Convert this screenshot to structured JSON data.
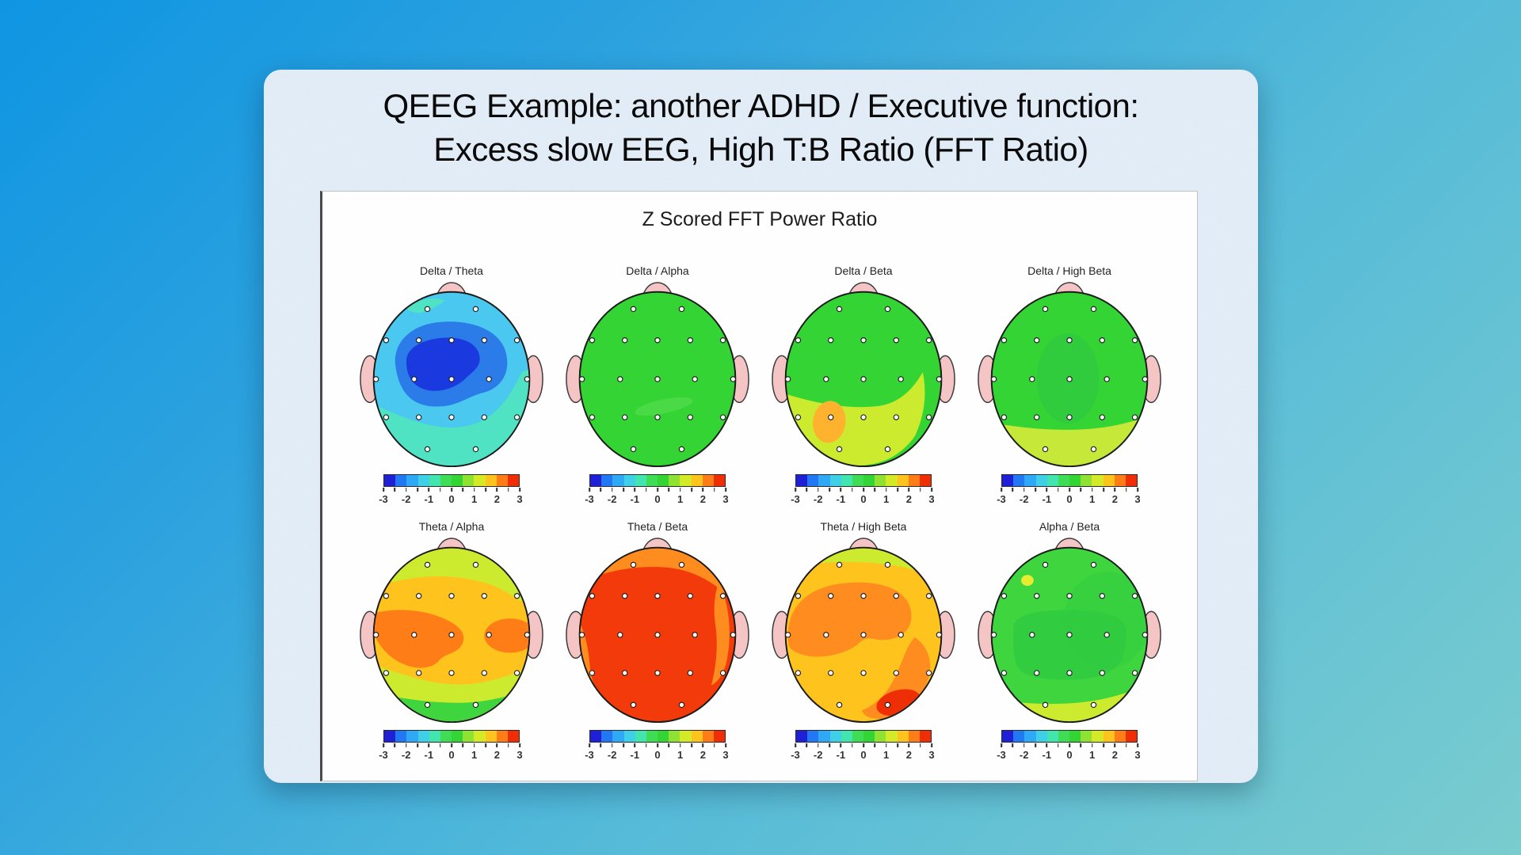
{
  "slide": {
    "title_line1": "QEEG Example: another ADHD / Executive function:",
    "title_line2": "Excess slow EEG, High T:B Ratio (FFT Ratio)"
  },
  "panel": {
    "title": "Z Scored FFT Power Ratio",
    "scale_ticks": [
      "-3",
      "-2",
      "-1",
      "0",
      "1",
      "2",
      "3"
    ],
    "colorbar_colors": [
      "#1f1fd6",
      "#2277f2",
      "#2fa9f5",
      "#3fd0e8",
      "#42e5ad",
      "#3edd55",
      "#35d435",
      "#8fe232",
      "#d4ea26",
      "#ffc31e",
      "#ff7d17",
      "#f02e05"
    ],
    "maps": [
      {
        "label": "Delta / Theta"
      },
      {
        "label": "Delta / Alpha"
      },
      {
        "label": "Delta / Beta"
      },
      {
        "label": "Delta / High Beta"
      },
      {
        "label": "Theta / Alpha"
      },
      {
        "label": "Theta / Beta"
      },
      {
        "label": "Theta / High Beta"
      },
      {
        "label": "Alpha / Beta"
      }
    ]
  },
  "chart_data": {
    "type": "heatmap",
    "title": "Z Scored FFT Power Ratio",
    "subtype": "EEG topographic z-score maps, 19-channel 10-20 montage, 2x4 grid",
    "colorbar": {
      "min": -3,
      "max": 3,
      "ticks": [
        -3,
        -2,
        -1,
        0,
        1,
        2,
        3
      ],
      "palette": [
        "#1f1fd6",
        "#2277f2",
        "#2fa9f5",
        "#3fd0e8",
        "#42e5ad",
        "#3edd55",
        "#35d435",
        "#8fe232",
        "#d4ea26",
        "#ffc31e",
        "#ff7d17",
        "#f02e05"
      ]
    },
    "maps": [
      {
        "label": "Delta / Theta",
        "approx_region_z": {
          "overall": -1.5,
          "frontal_central": -2.7,
          "frontal_ring": -2.2,
          "posterior": -1.0,
          "top_left_patch": -1.0
        }
      },
      {
        "label": "Delta / Alpha",
        "approx_region_z": {
          "overall": 0.0
        }
      },
      {
        "label": "Delta / Beta",
        "approx_region_z": {
          "frontal": 0.2,
          "posterior": 1.2,
          "left_parietal": 1.8
        }
      },
      {
        "label": "Delta / High Beta",
        "approx_region_z": {
          "overall": 0.2,
          "occipital": 1.2
        }
      },
      {
        "label": "Theta / Alpha",
        "approx_region_z": {
          "overall": 1.7,
          "left_central": 2.3,
          "right_temporal": 2.3,
          "frontal_pole": 1.2,
          "parietal": 1.2,
          "occipital": 0.3
        }
      },
      {
        "label": "Theta / Beta",
        "approx_region_z": {
          "overall": 2.8,
          "top_and_side_edges": 2.2
        }
      },
      {
        "label": "Theta / High Beta",
        "approx_region_z": {
          "overall": 1.7,
          "frontal_central": 2.2,
          "right_parietal": 2.2,
          "right_occipital": 2.9,
          "frontal_pole": 1.0
        }
      },
      {
        "label": "Alpha / Beta",
        "approx_region_z": {
          "overall": 0.2,
          "central_parietal": 0.0,
          "occipital": 1.0,
          "left_frontal_spot": 1.2
        }
      }
    ]
  }
}
